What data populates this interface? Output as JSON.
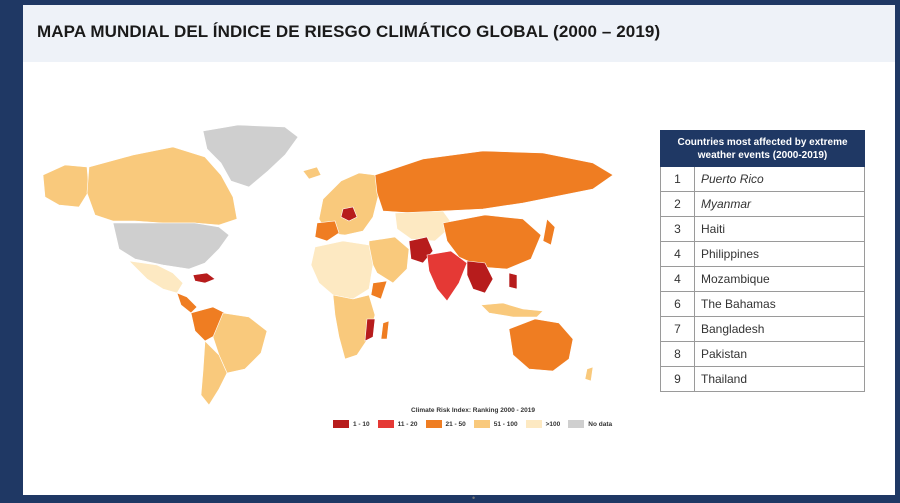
{
  "slide": {
    "title": "MAPA MUNDIAL DEL ÍNDICE DE RIESGO CLIMÁTICO GLOBAL (2000 – 2019)"
  },
  "map": {
    "legend_title": "Climate Risk Index: Ranking 2000 - 2019",
    "legend": [
      {
        "label": "1 - 10",
        "color": "#b71c1c"
      },
      {
        "label": "11 - 20",
        "color": "#e53935"
      },
      {
        "label": "21 - 50",
        "color": "#ef7d22"
      },
      {
        "label": "51 - 100",
        "color": "#f9c97c"
      },
      {
        "label": ">100",
        "color": "#fde9c2"
      },
      {
        "label": "No data",
        "color": "#cfcfcf"
      }
    ]
  },
  "table": {
    "header": "Countries most affected by extreme weather events (2000-2019)",
    "rows": [
      {
        "rank": "1",
        "country": "Puerto Rico",
        "italic": true
      },
      {
        "rank": "2",
        "country": "Myanmar",
        "italic": true
      },
      {
        "rank": "3",
        "country": "Haiti",
        "italic": false
      },
      {
        "rank": "4",
        "country": "Philippines",
        "italic": false
      },
      {
        "rank": "4",
        "country": "Mozambique",
        "italic": false
      },
      {
        "rank": "6",
        "country": "The Bahamas",
        "italic": false
      },
      {
        "rank": "7",
        "country": "Bangladesh",
        "italic": false
      },
      {
        "rank": "8",
        "country": "Pakistan",
        "italic": false
      },
      {
        "rank": "9",
        "country": "Thailand",
        "italic": false
      }
    ]
  }
}
